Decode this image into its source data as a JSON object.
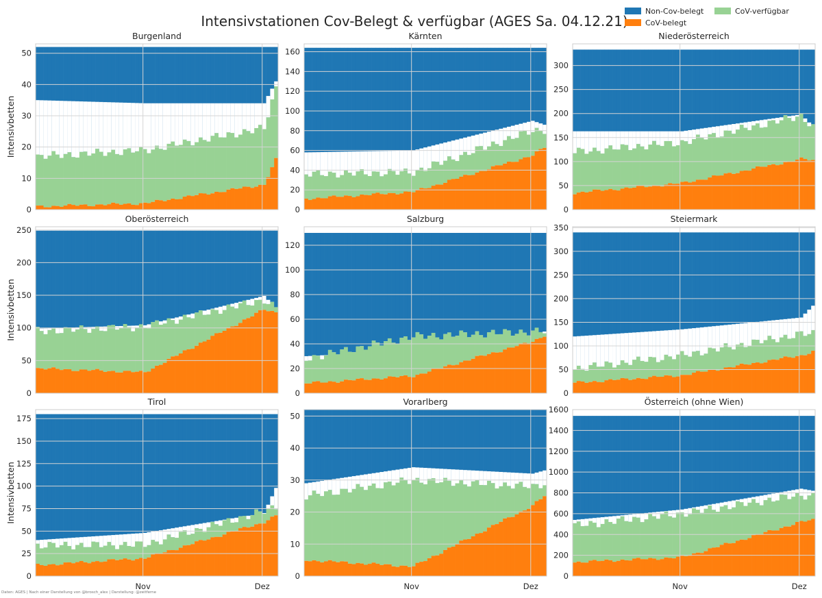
{
  "title": "Intensivstationen Cov-Belegt & verfügbar (AGES Sa. 04.12.21)",
  "credit": "Daten: AGES | Nach einer Darstellung von @brosch_alex | Darstellung: @zeitferne",
  "ylabel": "Intensivbetten",
  "xticks": [
    "Nov",
    "Dez"
  ],
  "legend": [
    {
      "label": "Non-Cov-belegt",
      "color": "#1f77b4"
    },
    {
      "label": "CoV-verfügbar",
      "color": "#98d294"
    },
    {
      "label": "CoV-belegt",
      "color": "#ff7f0e"
    }
  ],
  "colors": {
    "noncov": "#1f77b4",
    "covfree": "#98d294",
    "covused": "#ff7f0e",
    "overlap": "#2a8a6a",
    "gap": "#ffffff"
  },
  "chart_data": [
    {
      "type": "area",
      "title": "Burgenland",
      "ylim": [
        0,
        53
      ],
      "yticks": [
        0,
        10,
        20,
        30,
        40,
        50
      ],
      "x": [
        "2021-10-05",
        "2021-11-01",
        "2021-12-01",
        "2021-12-04"
      ],
      "series": [
        {
          "name": "CoV-belegt",
          "values": [
            1,
            2,
            8,
            16
          ]
        },
        {
          "name": "CoV-verfügbar",
          "values": [
            16,
            17,
            18,
            23
          ]
        },
        {
          "name": "Non-Cov-belegt",
          "values": [
            17,
            18,
            18,
            11
          ]
        },
        {
          "name": "Intensivbetten gesamt",
          "values": [
            52,
            52,
            52,
            52
          ]
        }
      ]
    },
    {
      "type": "area",
      "title": "Kärnten",
      "ylim": [
        0,
        168
      ],
      "yticks": [
        0,
        20,
        40,
        60,
        80,
        100,
        120,
        140,
        160
      ],
      "x": [
        "2021-10-05",
        "2021-11-01",
        "2021-12-01",
        "2021-12-04"
      ],
      "series": [
        {
          "name": "CoV-belegt",
          "values": [
            11,
            18,
            55,
            63
          ]
        },
        {
          "name": "CoV-verfügbar",
          "values": [
            25,
            20,
            25,
            18
          ]
        },
        {
          "name": "Non-Cov-belegt",
          "values": [
            106,
            104,
            74,
            78
          ]
        },
        {
          "name": "Intensivbetten gesamt",
          "values": [
            164,
            164,
            164,
            164
          ]
        }
      ]
    },
    {
      "type": "area",
      "title": "Niederösterreich",
      "ylim": [
        0,
        345
      ],
      "yticks": [
        0,
        50,
        100,
        150,
        200,
        250,
        300
      ],
      "x": [
        "2021-10-05",
        "2021-11-01",
        "2021-12-01",
        "2021-12-04"
      ],
      "series": [
        {
          "name": "CoV-belegt",
          "values": [
            35,
            55,
            105,
            103
          ]
        },
        {
          "name": "CoV-verfügbar",
          "values": [
            85,
            85,
            90,
            70
          ]
        },
        {
          "name": "Non-Cov-belegt",
          "values": [
            170,
            170,
            135,
            160
          ]
        },
        {
          "name": "Intensivbetten gesamt",
          "values": [
            333,
            333,
            333,
            333
          ]
        }
      ]
    },
    {
      "type": "area",
      "title": "Oberösterreich",
      "ylim": [
        0,
        255
      ],
      "yticks": [
        0,
        50,
        100,
        150,
        200,
        250
      ],
      "x": [
        "2021-10-05",
        "2021-11-01",
        "2021-12-01",
        "2021-12-04"
      ],
      "series": [
        {
          "name": "CoV-belegt",
          "values": [
            38,
            32,
            128,
            124
          ]
        },
        {
          "name": "CoV-verfügbar",
          "values": [
            57,
            70,
            15,
            6
          ]
        },
        {
          "name": "Non-Cov-belegt",
          "values": [
            150,
            145,
            100,
            118
          ]
        },
        {
          "name": "Intensivbetten gesamt",
          "values": [
            249,
            249,
            249,
            249
          ]
        }
      ]
    },
    {
      "type": "area",
      "title": "Salzburg",
      "ylim": [
        0,
        135
      ],
      "yticks": [
        0,
        20,
        40,
        60,
        80,
        100,
        120
      ],
      "x": [
        "2021-10-05",
        "2021-11-01",
        "2021-12-01",
        "2021-12-04"
      ],
      "series": [
        {
          "name": "CoV-belegt",
          "values": [
            8,
            14,
            42,
            47
          ]
        },
        {
          "name": "CoV-verfügbar",
          "values": [
            20,
            32,
            8,
            3
          ]
        },
        {
          "name": "Non-Cov-belegt",
          "values": [
            100,
            95,
            90,
            80
          ]
        },
        {
          "name": "Intensivbetten gesamt",
          "values": [
            130,
            130,
            130,
            130
          ]
        }
      ]
    },
    {
      "type": "area",
      "title": "Steiermark",
      "ylim": [
        0,
        352
      ],
      "yticks": [
        0,
        50,
        100,
        150,
        200,
        250,
        300,
        350
      ],
      "x": [
        "2021-10-05",
        "2021-11-01",
        "2021-12-01",
        "2021-12-04"
      ],
      "series": [
        {
          "name": "CoV-belegt",
          "values": [
            22,
            38,
            80,
            88
          ]
        },
        {
          "name": "CoV-verfügbar",
          "values": [
            30,
            42,
            45,
            38
          ]
        },
        {
          "name": "Non-Cov-belegt",
          "values": [
            220,
            205,
            180,
            155
          ]
        },
        {
          "name": "Intensivbetten gesamt",
          "values": [
            340,
            340,
            340,
            340
          ]
        }
      ]
    },
    {
      "type": "area",
      "title": "Tirol",
      "ylim": [
        0,
        185
      ],
      "yticks": [
        0,
        25,
        50,
        75,
        100,
        125,
        150,
        175
      ],
      "x": [
        "2021-10-05",
        "2021-11-01",
        "2021-12-01",
        "2021-12-04"
      ],
      "series": [
        {
          "name": "CoV-belegt",
          "values": [
            12,
            20,
            60,
            67
          ]
        },
        {
          "name": "CoV-verfügbar",
          "values": [
            22,
            15,
            12,
            10
          ]
        },
        {
          "name": "Non-Cov-belegt",
          "values": [
            140,
            132,
            110,
            82
          ]
        },
        {
          "name": "Intensivbetten gesamt",
          "values": [
            180,
            180,
            180,
            180
          ]
        }
      ]
    },
    {
      "type": "area",
      "title": "Vorarlberg",
      "ylim": [
        0,
        52
      ],
      "yticks": [
        0,
        10,
        20,
        30,
        40,
        50
      ],
      "x": [
        "2021-10-05",
        "2021-11-01",
        "2021-12-01",
        "2021-12-04"
      ],
      "series": [
        {
          "name": "CoV-belegt",
          "values": [
            5,
            3,
            22,
            25
          ]
        },
        {
          "name": "CoV-verfügbar",
          "values": [
            20,
            27,
            6,
            4
          ]
        },
        {
          "name": "Non-Cov-belegt",
          "values": [
            23,
            18,
            20,
            19
          ]
        },
        {
          "name": "Intensivbetten gesamt",
          "values": [
            52,
            52,
            52,
            52
          ]
        }
      ]
    },
    {
      "type": "area",
      "title": "Österreich (ohne Wien)",
      "ylim": [
        0,
        1600
      ],
      "yticks": [
        0,
        200,
        400,
        600,
        800,
        1000,
        1200,
        1400,
        1600
      ],
      "x": [
        "2021-10-05",
        "2021-11-01",
        "2021-12-01",
        "2021-12-04"
      ],
      "series": [
        {
          "name": "CoV-belegt",
          "values": [
            135,
            180,
            520,
            540
          ]
        },
        {
          "name": "CoV-verfügbar",
          "values": [
            350,
            420,
            260,
            230
          ]
        },
        {
          "name": "Non-Cov-belegt",
          "values": [
            1000,
            900,
            700,
            720
          ]
        },
        {
          "name": "Intensivbetten gesamt",
          "values": [
            1540,
            1540,
            1540,
            1540
          ]
        }
      ]
    }
  ]
}
